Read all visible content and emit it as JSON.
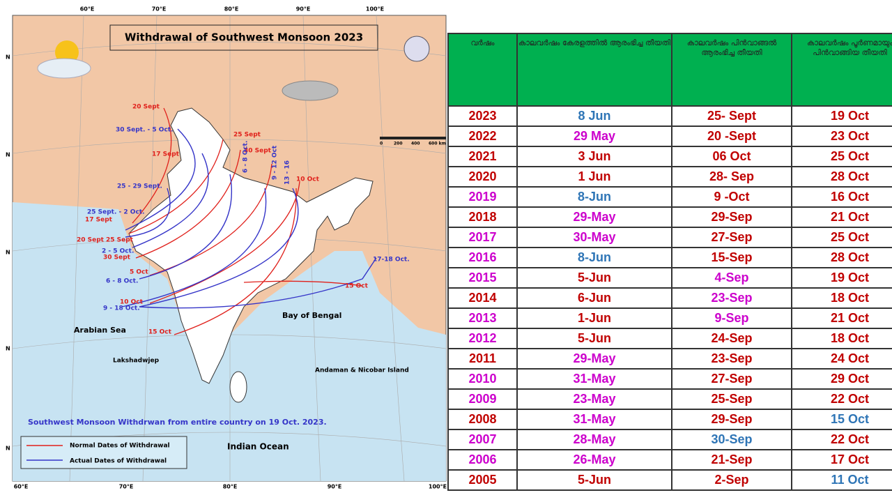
{
  "map": {
    "title": "Withdrawal of Southwest Monsoon 2023",
    "normal_color": "#e0201b",
    "actual_color": "#3535c8",
    "lon_labels": [
      "60°E",
      "70°E",
      "80°E",
      "90°E",
      "100°E"
    ],
    "lat_labels": [
      "N",
      "N",
      "N",
      "N",
      "N"
    ],
    "normal_labels": [
      "20 Sept",
      "25 Sept",
      "30 Sept",
      "17 Sept",
      "17 Sept",
      "20 Sept",
      "30 Sept",
      "5 Oct",
      "10 Oct",
      "15 Oct",
      "10 Oct",
      "15 Oct",
      "25 Sept"
    ],
    "actual_labels": [
      "30 Sept. - 5 Oct.",
      "25 - 29 Sept.",
      "25 Sept. - 2 Oct.",
      "2 - 5 Oct.",
      "6 - 8 Oct.",
      "9 - 18 Oct.",
      "6 - 8 Oct.",
      "9 - 12 Oct",
      "13 - 16",
      "17-18 Oct."
    ],
    "places": [
      "Arabian Sea",
      "Bay of Bengal",
      "Lakshadwjep",
      "Andaman & Nicobar Island",
      "Indian Ocean"
    ],
    "scale": [
      "0",
      "200",
      "400",
      "600 km"
    ],
    "note": "Southwest Monsoon Withdrwan from entire country on 19 Oct. 2023.",
    "legend": [
      "Normal Dates of Withdrawal",
      "Actual Dates of Withdrawal"
    ]
  },
  "table": {
    "header": [
      "വർഷം",
      "കാലവർഷം കേരളത്തിൽ ആരംഭിച്ച തീയതി",
      "കാലവർഷം പിൻവാങ്ങൽ ആരംഭിച്ച തീയതി",
      "കാലവർഷം പൂർണമായും പിൻവാങ്ങിയ തീയതി"
    ],
    "header_color": "#00b050",
    "rows": [
      [
        "2023",
        "8 Jun",
        "25- Sept",
        "19 Oct"
      ],
      [
        "2022",
        "29 May",
        "20 -Sept",
        "23 Oct"
      ],
      [
        "2021",
        "3 Jun",
        "06 Oct",
        "25 Oct"
      ],
      [
        "2020",
        "1 Jun",
        "28- Sep",
        "28 Oct"
      ],
      [
        "2019",
        "8-Jun",
        "9 -Oct",
        "16 Oct"
      ],
      [
        "2018",
        "29-May",
        "29-Sep",
        "21 Oct"
      ],
      [
        "2017",
        "30-May",
        "27-Sep",
        "25 Oct"
      ],
      [
        "2016",
        "8-Jun",
        "15-Sep",
        "28 Oct"
      ],
      [
        "2015",
        "5-Jun",
        "4-Sep",
        "19 Oct"
      ],
      [
        "2014",
        "6-Jun",
        "23-Sep",
        "18 Oct"
      ],
      [
        "2013",
        "1-Jun",
        "9-Sep",
        "21 Oct"
      ],
      [
        "2012",
        "5-Jun",
        "24-Sep",
        "18 Oct"
      ],
      [
        "2011",
        "29-May",
        "23-Sep",
        "24 Oct"
      ],
      [
        "2010",
        "31-May",
        "27-Sep",
        "29 Oct"
      ],
      [
        "2009",
        "23-May",
        "25-Sep",
        "22 Oct"
      ],
      [
        "2008",
        "31-May",
        "29-Sep",
        "15 Oct"
      ],
      [
        "2007",
        "28-May",
        "30-Sep",
        "22 Oct"
      ],
      [
        "2006",
        "26-May",
        "21-Sep",
        "17 Oct"
      ],
      [
        "2005",
        "5-Jun",
        "2-Sep",
        "11 Oct"
      ]
    ],
    "row_colors": [
      [
        "#c00000",
        "#2e75b6",
        "#c00000",
        "#c00000"
      ],
      [
        "#c00000",
        "#cc00cc",
        "#c00000",
        "#c00000"
      ],
      [
        "#c00000",
        "#c00000",
        "#c00000",
        "#c00000"
      ],
      [
        "#c00000",
        "#c00000",
        "#c00000",
        "#c00000"
      ],
      [
        "#cc00cc",
        "#2e75b6",
        "#c00000",
        "#c00000"
      ],
      [
        "#c00000",
        "#cc00cc",
        "#c00000",
        "#c00000"
      ],
      [
        "#cc00cc",
        "#cc00cc",
        "#c00000",
        "#c00000"
      ],
      [
        "#cc00cc",
        "#2e75b6",
        "#c00000",
        "#c00000"
      ],
      [
        "#cc00cc",
        "#c00000",
        "#cc00cc",
        "#c00000"
      ],
      [
        "#c00000",
        "#c00000",
        "#cc00cc",
        "#c00000"
      ],
      [
        "#cc00cc",
        "#c00000",
        "#cc00cc",
        "#c00000"
      ],
      [
        "#cc00cc",
        "#c00000",
        "#c00000",
        "#c00000"
      ],
      [
        "#c00000",
        "#cc00cc",
        "#c00000",
        "#c00000"
      ],
      [
        "#cc00cc",
        "#cc00cc",
        "#c00000",
        "#c00000"
      ],
      [
        "#cc00cc",
        "#cc00cc",
        "#c00000",
        "#c00000"
      ],
      [
        "#c00000",
        "#cc00cc",
        "#c00000",
        "#2e75b6"
      ],
      [
        "#cc00cc",
        "#cc00cc",
        "#2e75b6",
        "#c00000"
      ],
      [
        "#cc00cc",
        "#cc00cc",
        "#c00000",
        "#c00000"
      ],
      [
        "#c00000",
        "#c00000",
        "#c00000",
        "#2e75b6"
      ]
    ]
  }
}
